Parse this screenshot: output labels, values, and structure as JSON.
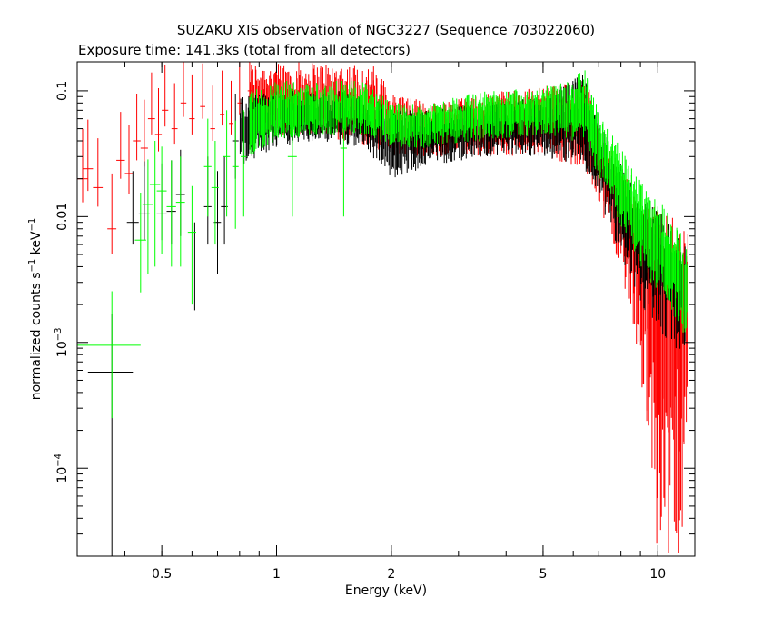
{
  "chart_data": {
    "type": "scatter",
    "title": "SUZAKU XIS observation of NGC3227 (Sequence 703022060)",
    "subtitle": "Exposure time: 141.3ks (total from all detectors)",
    "xlabel": "Energy (keV)",
    "ylabel": "normalized counts s^-1 keV^-1",
    "x_scale": "log",
    "y_scale": "log",
    "xlim": [
      0.3,
      12.5
    ],
    "ylim": [
      2e-05,
      0.17
    ],
    "grid": false,
    "x_ticks": [
      {
        "value": 0.5,
        "label": "0.5"
      },
      {
        "value": 1,
        "label": "1"
      },
      {
        "value": 2,
        "label": "2"
      },
      {
        "value": 5,
        "label": "5"
      },
      {
        "value": 10,
        "label": "10"
      }
    ],
    "y_ticks": [
      {
        "value": 0.1,
        "base": "0.1",
        "exp": ""
      },
      {
        "value": 0.01,
        "base": "0.01",
        "exp": ""
      },
      {
        "value": 0.001,
        "base": "10",
        "exp": "−3"
      },
      {
        "value": 0.0001,
        "base": "10",
        "exp": "−4"
      }
    ],
    "series": [
      {
        "color": "#ff0000",
        "points": [
          {
            "x": 0.31,
            "y": 0.02,
            "xerr": 0.01,
            "yerr_lo": 0.007,
            "yerr_hi": 0.03
          },
          {
            "x": 0.32,
            "y": 0.024,
            "xerr": 0.01,
            "yerr_lo": 0.008,
            "yerr_hi": 0.035
          },
          {
            "x": 0.34,
            "y": 0.017,
            "xerr": 0.01,
            "yerr_lo": 0.005,
            "yerr_hi": 0.025
          },
          {
            "x": 0.37,
            "y": 0.008,
            "xerr": 0.01,
            "yerr_lo": 0.003,
            "yerr_hi": 0.014
          },
          {
            "x": 0.39,
            "y": 0.028,
            "xerr": 0.01,
            "yerr_lo": 0.008,
            "yerr_hi": 0.04
          },
          {
            "x": 0.41,
            "y": 0.022,
            "xerr": 0.01,
            "yerr_lo": 0.007,
            "yerr_hi": 0.032
          },
          {
            "x": 0.43,
            "y": 0.04,
            "xerr": 0.01,
            "yerr_lo": 0.012,
            "yerr_hi": 0.055
          },
          {
            "x": 0.45,
            "y": 0.035,
            "xerr": 0.01,
            "yerr_lo": 0.01,
            "yerr_hi": 0.05
          },
          {
            "x": 0.47,
            "y": 0.06,
            "xerr": 0.01,
            "yerr_lo": 0.015,
            "yerr_hi": 0.08
          },
          {
            "x": 0.49,
            "y": 0.045,
            "xerr": 0.01,
            "yerr_lo": 0.012,
            "yerr_hi": 0.06
          },
          {
            "x": 0.51,
            "y": 0.07,
            "xerr": 0.01,
            "yerr_lo": 0.018,
            "yerr_hi": 0.09
          },
          {
            "x": 0.54,
            "y": 0.05,
            "xerr": 0.01,
            "yerr_lo": 0.012,
            "yerr_hi": 0.065
          },
          {
            "x": 0.57,
            "y": 0.08,
            "xerr": 0.01,
            "yerr_lo": 0.018,
            "yerr_hi": 0.1
          },
          {
            "x": 0.6,
            "y": 0.06,
            "xerr": 0.01,
            "yerr_lo": 0.015,
            "yerr_hi": 0.075
          },
          {
            "x": 0.64,
            "y": 0.075,
            "xerr": 0.01,
            "yerr_lo": 0.015,
            "yerr_hi": 0.09
          },
          {
            "x": 0.68,
            "y": 0.05,
            "xerr": 0.01,
            "yerr_lo": 0.01,
            "yerr_hi": 0.06
          },
          {
            "x": 0.72,
            "y": 0.065,
            "xerr": 0.01,
            "yerr_lo": 0.012,
            "yerr_hi": 0.08
          },
          {
            "x": 0.76,
            "y": 0.055,
            "xerr": 0.01,
            "yerr_lo": 0.01,
            "yerr_hi": 0.065
          },
          {
            "x": 0.8,
            "y": 0.08,
            "xerr": 0.01,
            "yerr_lo": 0.015,
            "yerr_hi": 0.1
          },
          {
            "x": 0.85,
            "y": 0.1,
            "xerr": 0.01,
            "yerr_lo": 0.02,
            "yerr_hi": 0.13
          }
        ],
        "band": [
          {
            "x": 0.85,
            "lo": 0.045,
            "hi": 0.17,
            "mid": 0.08
          },
          {
            "x": 1.0,
            "lo": 0.045,
            "hi": 0.17,
            "mid": 0.075
          },
          {
            "x": 1.2,
            "lo": 0.045,
            "hi": 0.17,
            "mid": 0.075
          },
          {
            "x": 1.5,
            "lo": 0.04,
            "hi": 0.17,
            "mid": 0.07
          },
          {
            "x": 1.8,
            "lo": 0.035,
            "hi": 0.16,
            "mid": 0.06
          },
          {
            "x": 2.0,
            "lo": 0.03,
            "hi": 0.1,
            "mid": 0.05
          },
          {
            "x": 2.5,
            "lo": 0.03,
            "hi": 0.08,
            "mid": 0.05
          },
          {
            "x": 3.0,
            "lo": 0.03,
            "hi": 0.09,
            "mid": 0.05
          },
          {
            "x": 4.0,
            "lo": 0.03,
            "hi": 0.1,
            "mid": 0.06
          },
          {
            "x": 5.0,
            "lo": 0.03,
            "hi": 0.11,
            "mid": 0.06
          },
          {
            "x": 6.0,
            "lo": 0.025,
            "hi": 0.12,
            "mid": 0.055
          },
          {
            "x": 6.4,
            "lo": 0.025,
            "hi": 0.16,
            "mid": 0.055
          },
          {
            "x": 7.0,
            "lo": 0.012,
            "hi": 0.05,
            "mid": 0.03
          },
          {
            "x": 8.0,
            "lo": 0.004,
            "hi": 0.025,
            "mid": 0.012
          },
          {
            "x": 9.0,
            "lo": 0.0005,
            "hi": 0.012,
            "mid": 0.006
          },
          {
            "x": 10.0,
            "lo": 2e-05,
            "hi": 0.012,
            "mid": 0.003
          },
          {
            "x": 11.0,
            "lo": 2e-05,
            "hi": 0.01,
            "mid": 0.003
          },
          {
            "x": 12.0,
            "lo": 2e-05,
            "hi": 0.008,
            "mid": 0.002
          }
        ]
      },
      {
        "color": "#000000",
        "points": [
          {
            "x": 0.37,
            "y": 0.00058,
            "xerr": 0.05,
            "yerr_lo": 0.00056,
            "yerr_hi": 0.0011
          },
          {
            "x": 0.42,
            "y": 0.009,
            "xerr": 0.015,
            "yerr_lo": 0.003,
            "yerr_hi": 0.014
          },
          {
            "x": 0.45,
            "y": 0.0105,
            "xerr": 0.015,
            "yerr_lo": 0.004,
            "yerr_hi": 0.017
          },
          {
            "x": 0.5,
            "y": 0.0105,
            "xerr": 0.015,
            "yerr_lo": 0.004,
            "yerr_hi": 0.016
          },
          {
            "x": 0.53,
            "y": 0.011,
            "xerr": 0.015,
            "yerr_lo": 0.005,
            "yerr_hi": 0.017
          },
          {
            "x": 0.56,
            "y": 0.015,
            "xerr": 0.015,
            "yerr_lo": 0.008,
            "yerr_hi": 0.019
          },
          {
            "x": 0.61,
            "y": 0.0035,
            "xerr": 0.02,
            "yerr_lo": 0.0017,
            "yerr_hi": 0.0055
          },
          {
            "x": 0.66,
            "y": 0.012,
            "xerr": 0.015,
            "yerr_lo": 0.006,
            "yerr_hi": 0.018
          },
          {
            "x": 0.7,
            "y": 0.009,
            "xerr": 0.015,
            "yerr_lo": 0.0055,
            "yerr_hi": 0.014
          },
          {
            "x": 0.73,
            "y": 0.012,
            "xerr": 0.015,
            "yerr_lo": 0.006,
            "yerr_hi": 0.018
          },
          {
            "x": 0.78,
            "y": 0.04,
            "xerr": 0.015,
            "yerr_lo": 0.02,
            "yerr_hi": 0.055
          }
        ],
        "band": [
          {
            "x": 0.8,
            "lo": 0.025,
            "hi": 0.09,
            "mid": 0.05
          },
          {
            "x": 1.0,
            "lo": 0.035,
            "hi": 0.1,
            "mid": 0.06
          },
          {
            "x": 1.3,
            "lo": 0.04,
            "hi": 0.1,
            "mid": 0.06
          },
          {
            "x": 1.7,
            "lo": 0.035,
            "hi": 0.1,
            "mid": 0.055
          },
          {
            "x": 2.0,
            "lo": 0.02,
            "hi": 0.07,
            "mid": 0.04
          },
          {
            "x": 2.5,
            "lo": 0.025,
            "hi": 0.07,
            "mid": 0.045
          },
          {
            "x": 3.5,
            "lo": 0.03,
            "hi": 0.08,
            "mid": 0.05
          },
          {
            "x": 5.0,
            "lo": 0.03,
            "hi": 0.09,
            "mid": 0.05
          },
          {
            "x": 6.4,
            "lo": 0.025,
            "hi": 0.14,
            "mid": 0.05
          },
          {
            "x": 7.5,
            "lo": 0.008,
            "hi": 0.035,
            "mid": 0.02
          },
          {
            "x": 9.0,
            "lo": 0.002,
            "hi": 0.015,
            "mid": 0.007
          },
          {
            "x": 10.5,
            "lo": 0.001,
            "hi": 0.01,
            "mid": 0.004
          },
          {
            "x": 11.8,
            "lo": 0.0008,
            "hi": 0.006,
            "mid": 0.003
          }
        ]
      },
      {
        "color": "#00ff00",
        "points": [
          {
            "x": 0.37,
            "y": 0.00095,
            "xerr": 0.07,
            "yerr_lo": 0.0007,
            "yerr_hi": 0.0016
          },
          {
            "x": 0.44,
            "y": 0.0065,
            "xerr": 0.015,
            "yerr_lo": 0.004,
            "yerr_hi": 0.009
          },
          {
            "x": 0.46,
            "y": 0.0125,
            "xerr": 0.015,
            "yerr_lo": 0.009,
            "yerr_hi": 0.016
          },
          {
            "x": 0.48,
            "y": 0.018,
            "xerr": 0.015,
            "yerr_lo": 0.014,
            "yerr_hi": 0.022
          },
          {
            "x": 0.5,
            "y": 0.016,
            "xerr": 0.015,
            "yerr_lo": 0.011,
            "yerr_hi": 0.02
          },
          {
            "x": 0.53,
            "y": 0.012,
            "xerr": 0.015,
            "yerr_lo": 0.008,
            "yerr_hi": 0.016
          },
          {
            "x": 0.56,
            "y": 0.013,
            "xerr": 0.015,
            "yerr_lo": 0.009,
            "yerr_hi": 0.017
          },
          {
            "x": 0.6,
            "y": 0.0075,
            "xerr": 0.015,
            "yerr_lo": 0.0055,
            "yerr_hi": 0.01
          },
          {
            "x": 0.66,
            "y": 0.025,
            "xerr": 0.015,
            "yerr_lo": 0.015,
            "yerr_hi": 0.035
          },
          {
            "x": 0.69,
            "y": 0.017,
            "xerr": 0.015,
            "yerr_lo": 0.011,
            "yerr_hi": 0.023
          },
          {
            "x": 0.74,
            "y": 0.03,
            "xerr": 0.015,
            "yerr_lo": 0.02,
            "yerr_hi": 0.04
          },
          {
            "x": 0.78,
            "y": 0.025,
            "xerr": 0.015,
            "yerr_lo": 0.017,
            "yerr_hi": 0.033
          },
          {
            "x": 0.82,
            "y": 0.03,
            "xerr": 0.015,
            "yerr_lo": 0.02,
            "yerr_hi": 0.04
          },
          {
            "x": 1.1,
            "y": 0.03,
            "xerr": 0.03,
            "yerr_lo": 0.02,
            "yerr_hi": 0.04
          },
          {
            "x": 1.5,
            "y": 0.035,
            "xerr": 0.03,
            "yerr_lo": 0.025,
            "yerr_hi": 0.05
          }
        ],
        "band": [
          {
            "x": 0.85,
            "lo": 0.03,
            "hi": 0.1,
            "mid": 0.055
          },
          {
            "x": 1.0,
            "lo": 0.04,
            "hi": 0.12,
            "mid": 0.065
          },
          {
            "x": 1.3,
            "lo": 0.045,
            "hi": 0.12,
            "mid": 0.07
          },
          {
            "x": 1.7,
            "lo": 0.045,
            "hi": 0.12,
            "mid": 0.07
          },
          {
            "x": 2.0,
            "lo": 0.035,
            "hi": 0.08,
            "mid": 0.055
          },
          {
            "x": 2.5,
            "lo": 0.035,
            "hi": 0.08,
            "mid": 0.055
          },
          {
            "x": 3.5,
            "lo": 0.04,
            "hi": 0.1,
            "mid": 0.065
          },
          {
            "x": 5.0,
            "lo": 0.045,
            "hi": 0.11,
            "mid": 0.07
          },
          {
            "x": 6.0,
            "lo": 0.04,
            "hi": 0.12,
            "mid": 0.065
          },
          {
            "x": 6.4,
            "lo": 0.04,
            "hi": 0.17,
            "mid": 0.07
          },
          {
            "x": 7.0,
            "lo": 0.02,
            "hi": 0.07,
            "mid": 0.04
          },
          {
            "x": 8.0,
            "lo": 0.008,
            "hi": 0.035,
            "mid": 0.018
          },
          {
            "x": 9.0,
            "lo": 0.004,
            "hi": 0.02,
            "mid": 0.01
          },
          {
            "x": 10.5,
            "lo": 0.002,
            "hi": 0.012,
            "mid": 0.005
          },
          {
            "x": 12.0,
            "lo": 0.001,
            "hi": 0.006,
            "mid": 0.003
          }
        ]
      }
    ]
  }
}
